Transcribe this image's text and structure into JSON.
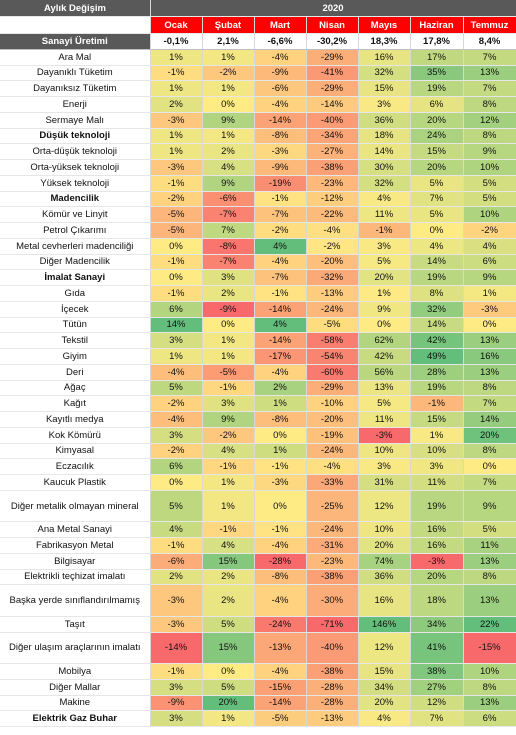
{
  "header": {
    "title": "Aylık Değişim",
    "year": "2020"
  },
  "months": [
    "Ocak",
    "Şubat",
    "Mart",
    "Nisan",
    "Mayıs",
    "Haziran",
    "Temmuz"
  ],
  "rows": [
    {
      "label": "Sanayi Üretimi",
      "values": [
        "-0,1%",
        "2,1%",
        "-6,6%",
        "-30,2%",
        "18,3%",
        "17,8%",
        "8,4%"
      ],
      "kind": "total"
    },
    {
      "label": "Ara Mal",
      "values": [
        "1%",
        "1%",
        "-4%",
        "-29%",
        "16%",
        "17%",
        "7%"
      ]
    },
    {
      "label": "Dayanıklı Tüketim",
      "values": [
        "-1%",
        "-2%",
        "-9%",
        "-41%",
        "32%",
        "35%",
        "13%"
      ]
    },
    {
      "label": "Dayanıksız Tüketim",
      "values": [
        "1%",
        "1%",
        "-6%",
        "-29%",
        "15%",
        "19%",
        "7%"
      ]
    },
    {
      "label": "Enerji",
      "values": [
        "2%",
        "0%",
        "-4%",
        "-14%",
        "3%",
        "6%",
        "8%"
      ]
    },
    {
      "label": "Sermaye Malı",
      "values": [
        "-3%",
        "9%",
        "-14%",
        "-40%",
        "36%",
        "20%",
        "12%"
      ]
    },
    {
      "label": "Düşük teknoloji",
      "values": [
        "1%",
        "1%",
        "-8%",
        "-34%",
        "18%",
        "24%",
        "8%"
      ],
      "kind": "section"
    },
    {
      "label": "Orta-düşük teknoloji",
      "values": [
        "1%",
        "2%",
        "-3%",
        "-27%",
        "14%",
        "15%",
        "9%"
      ]
    },
    {
      "label": "Orta-yüksek teknoloji",
      "values": [
        "-3%",
        "4%",
        "-9%",
        "-38%",
        "30%",
        "20%",
        "10%"
      ]
    },
    {
      "label": "Yüksek teknoloji",
      "values": [
        "-1%",
        "9%",
        "-19%",
        "-23%",
        "32%",
        "5%",
        "5%"
      ]
    },
    {
      "label": "Madencilik",
      "values": [
        "-2%",
        "-6%",
        "-1%",
        "-12%",
        "4%",
        "7%",
        "5%"
      ],
      "kind": "section-bold"
    },
    {
      "label": "Kömür ve Linyit",
      "values": [
        "-5%",
        "-7%",
        "-7%",
        "-22%",
        "11%",
        "5%",
        "10%"
      ]
    },
    {
      "label": "Petrol Çıkarımı",
      "values": [
        "-5%",
        "7%",
        "-2%",
        "-4%",
        "-1%",
        "0%",
        "-2%"
      ]
    },
    {
      "label": "Metal cevherleri madenciliği",
      "values": [
        "0%",
        "-8%",
        "4%",
        "-2%",
        "3%",
        "4%",
        "4%"
      ]
    },
    {
      "label": "Diğer Madencilik",
      "values": [
        "-1%",
        "-7%",
        "-4%",
        "-20%",
        "5%",
        "14%",
        "6%"
      ]
    },
    {
      "label": "İmalat Sanayi",
      "values": [
        "0%",
        "3%",
        "-7%",
        "-32%",
        "20%",
        "19%",
        "9%"
      ],
      "kind": "section-bold"
    },
    {
      "label": "Gıda",
      "values": [
        "-1%",
        "2%",
        "-1%",
        "-13%",
        "1%",
        "8%",
        "1%"
      ]
    },
    {
      "label": "İçecek",
      "values": [
        "6%",
        "-9%",
        "-14%",
        "-24%",
        "9%",
        "32%",
        "-3%"
      ]
    },
    {
      "label": "Tütün",
      "values": [
        "14%",
        "0%",
        "4%",
        "-5%",
        "0%",
        "14%",
        "0%"
      ]
    },
    {
      "label": "Tekstil",
      "values": [
        "3%",
        "1%",
        "-14%",
        "-58%",
        "62%",
        "42%",
        "13%"
      ]
    },
    {
      "label": "Giyim",
      "values": [
        "1%",
        "1%",
        "-17%",
        "-54%",
        "42%",
        "49%",
        "16%"
      ]
    },
    {
      "label": "Deri",
      "values": [
        "-4%",
        "-5%",
        "-4%",
        "-60%",
        "56%",
        "28%",
        "13%"
      ]
    },
    {
      "label": "Ağaç",
      "values": [
        "5%",
        "-1%",
        "2%",
        "-29%",
        "13%",
        "19%",
        "8%"
      ]
    },
    {
      "label": "Kağıt",
      "values": [
        "-2%",
        "3%",
        "1%",
        "-10%",
        "5%",
        "-1%",
        "7%"
      ]
    },
    {
      "label": "Kayıtlı medya",
      "values": [
        "-4%",
        "9%",
        "-8%",
        "-20%",
        "11%",
        "15%",
        "14%"
      ]
    },
    {
      "label": "Kok Kömürü",
      "values": [
        "3%",
        "-2%",
        "0%",
        "-19%",
        "-3%",
        "1%",
        "20%"
      ]
    },
    {
      "label": "Kimyasal",
      "values": [
        "-2%",
        "4%",
        "1%",
        "-24%",
        "10%",
        "10%",
        "8%"
      ]
    },
    {
      "label": "Eczacılık",
      "values": [
        "6%",
        "-1%",
        "-1%",
        "-4%",
        "3%",
        "3%",
        "0%"
      ]
    },
    {
      "label": "Kaucuk Plastik",
      "values": [
        "0%",
        "1%",
        "-3%",
        "-33%",
        "31%",
        "11%",
        "7%"
      ]
    },
    {
      "label": "Diğer metalik olmayan mineral",
      "values": [
        "5%",
        "1%",
        "0%",
        "-25%",
        "12%",
        "19%",
        "9%"
      ],
      "kind": "wrap"
    },
    {
      "label": "Ana Metal Sanayi",
      "values": [
        "4%",
        "-1%",
        "-1%",
        "-24%",
        "10%",
        "16%",
        "5%"
      ]
    },
    {
      "label": "Fabrikasyon Metal",
      "values": [
        "-1%",
        "4%",
        "-4%",
        "-31%",
        "20%",
        "16%",
        "11%"
      ]
    },
    {
      "label": "Bilgisayar",
      "values": [
        "-6%",
        "15%",
        "-28%",
        "-23%",
        "74%",
        "-3%",
        "13%"
      ]
    },
    {
      "label": "Elektrikli teçhizat imalatı",
      "values": [
        "2%",
        "2%",
        "-8%",
        "-38%",
        "36%",
        "20%",
        "8%"
      ]
    },
    {
      "label": "Başka yerde sınıflandırılmamış",
      "values": [
        "-3%",
        "2%",
        "-4%",
        "-30%",
        "16%",
        "18%",
        "13%"
      ],
      "kind": "wrap"
    },
    {
      "label": "Taşıt",
      "values": [
        "-3%",
        "5%",
        "-24%",
        "-71%",
        "146%",
        "34%",
        "22%"
      ]
    },
    {
      "label": "Diğer ulaşım araçlarının imalatı",
      "values": [
        "-14%",
        "15%",
        "-13%",
        "-40%",
        "12%",
        "41%",
        "-15%"
      ],
      "kind": "wrap"
    },
    {
      "label": "Mobilya",
      "values": [
        "-1%",
        "0%",
        "-4%",
        "-38%",
        "15%",
        "38%",
        "10%"
      ]
    },
    {
      "label": "Diğer Mallar",
      "values": [
        "3%",
        "5%",
        "-15%",
        "-28%",
        "34%",
        "27%",
        "8%"
      ]
    },
    {
      "label": "Makine",
      "values": [
        "-9%",
        "20%",
        "-14%",
        "-28%",
        "20%",
        "12%",
        "13%"
      ]
    },
    {
      "label": "Elektrik Gaz Buhar",
      "values": [
        "3%",
        "1%",
        "-5%",
        "-13%",
        "4%",
        "7%",
        "6%"
      ],
      "kind": "section-bold"
    }
  ]
}
